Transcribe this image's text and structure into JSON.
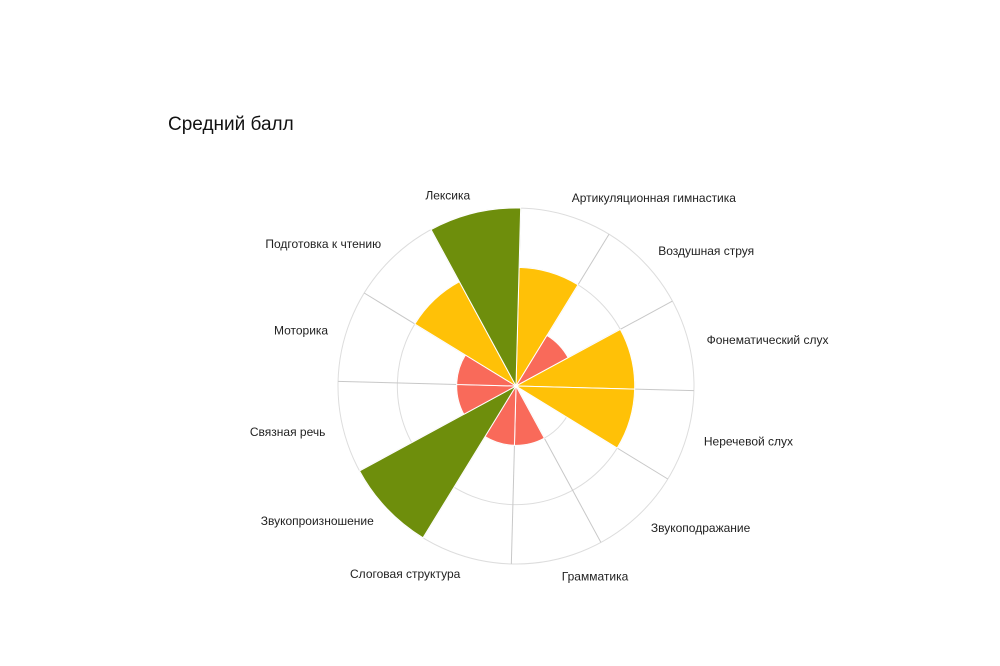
{
  "chart_data": {
    "type": "polar-area",
    "title": "Средний балл",
    "categories": [
      "Артикуляционная гимнастика",
      "Воздушная струя",
      "Фонематический слух",
      "Неречевой слух",
      "Звукоподражание",
      "Грамматика",
      "Слоговая структура",
      "Звукопроизношение",
      "Связная речь",
      "Моторика",
      "Подготовка к чтению",
      "Лексика"
    ],
    "values": [
      2,
      1,
      2,
      2,
      0,
      1,
      1,
      3,
      1,
      1,
      2,
      3
    ],
    "max": 3,
    "grid": true,
    "colors": {
      "low": "#f96a5a",
      "mid": "#ffc107",
      "high": "#6e8e0c",
      "grid": "#dddddd",
      "spoke": "#c8c8c8"
    }
  }
}
